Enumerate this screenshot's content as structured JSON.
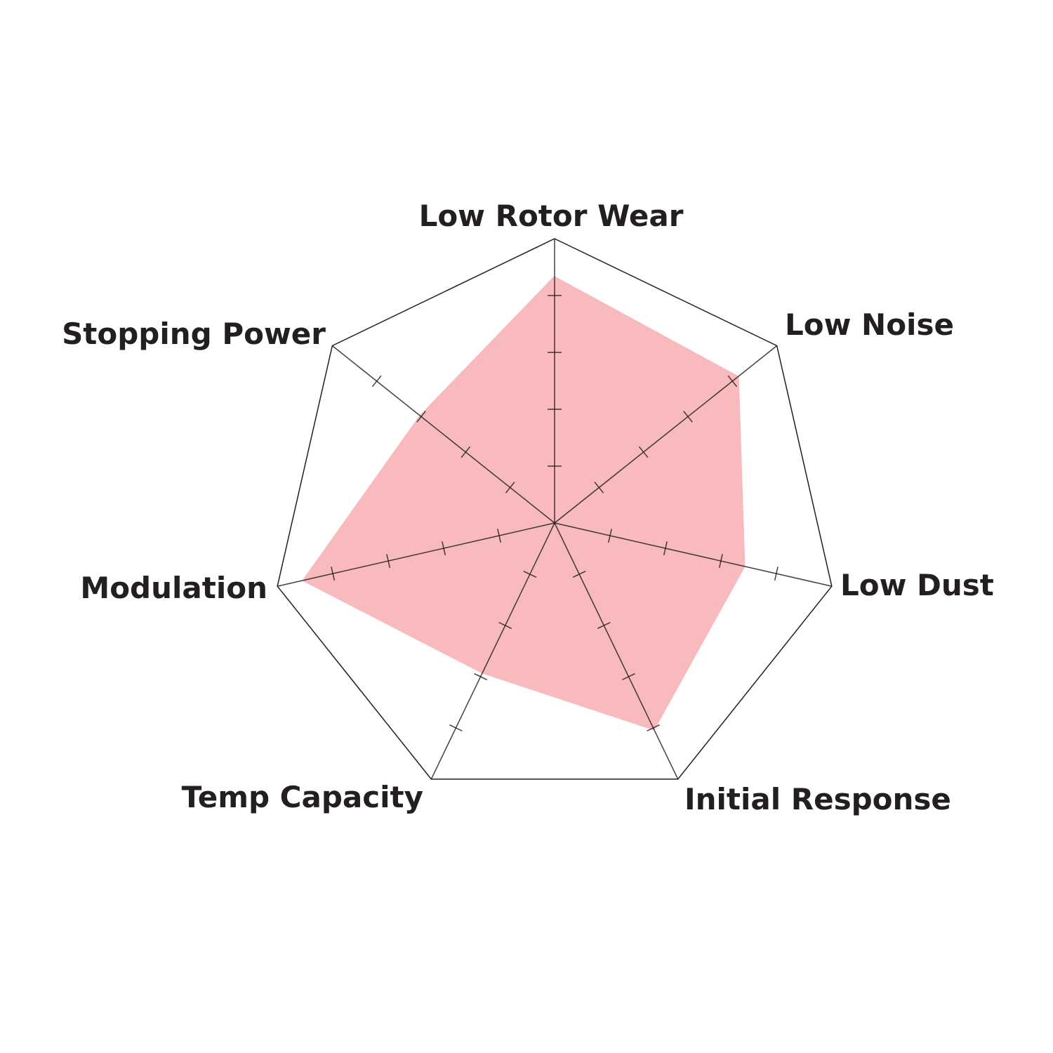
{
  "chart_data": {
    "type": "radar",
    "title": "",
    "axes": [
      "Low Rotor Wear",
      "Low Noise",
      "Low Dust",
      "Initial Response",
      "Temp Capacity",
      "Modulation",
      "Stopping Power"
    ],
    "values": [
      4.3,
      4.1,
      3.4,
      4.0,
      2.9,
      4.5,
      3.0
    ],
    "range": [
      0,
      5
    ],
    "ticks": [
      1,
      2,
      3,
      4
    ],
    "grid": true,
    "colors": {
      "fill": "#f8babd",
      "lines": "#231f20",
      "text": "#231f20"
    }
  }
}
